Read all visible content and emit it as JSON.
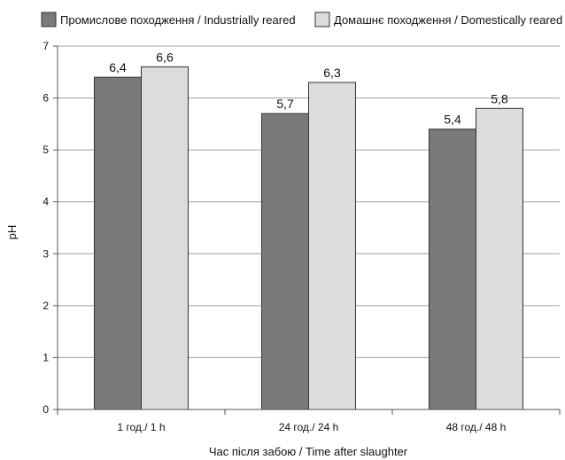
{
  "chart_data": {
    "type": "bar",
    "categories": [
      "1 год./ 1 h",
      "24 год./ 24 h",
      "48 год./ 48 h"
    ],
    "series": [
      {
        "name": "Промислове походження / Industrially reared",
        "values": [
          6.4,
          5.7,
          5.4
        ],
        "labels": [
          "6,4",
          "5,7",
          "5,4"
        ],
        "color": "#7a7a7a"
      },
      {
        "name": "Домашнє походження / Domestically reared",
        "values": [
          6.6,
          6.3,
          5.8
        ],
        "labels": [
          "6,6",
          "6,3",
          "5,8"
        ],
        "color": "#dcdcdc"
      }
    ],
    "xlabel": "Час після забою / Time after slaughter",
    "ylabel": "pH",
    "ylim": [
      0,
      7
    ],
    "yticks": [
      0,
      1,
      2,
      3,
      4,
      5,
      6,
      7
    ],
    "grid": true,
    "legend_position": "top",
    "bar_border_color": "#333333",
    "grid_color": "#a0a0a0"
  }
}
